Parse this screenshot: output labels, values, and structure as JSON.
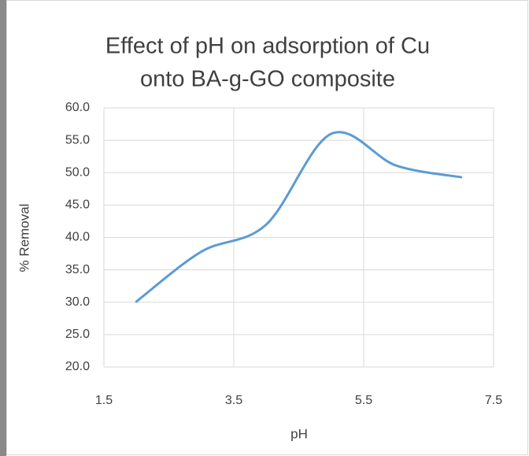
{
  "chart_data": {
    "type": "line",
    "title": [
      "Effect of pH on adsorption of Cu",
      "onto BA-g-GO composite"
    ],
    "x_label": "pH",
    "y_label": "% Removal",
    "x": [
      2,
      3,
      4,
      5,
      6,
      7
    ],
    "series": [
      {
        "name": "% Removal",
        "color": "#5b9bd5",
        "values": [
          30.1,
          37.8,
          42.0,
          56.0,
          51.1,
          49.3
        ]
      }
    ],
    "smooth": true,
    "xlim": [
      1.5,
      7.5
    ],
    "xticks": [
      1.5,
      3.5,
      5.5,
      7.5
    ],
    "ylim": [
      20,
      60
    ],
    "yticks": [
      {
        "value": 20,
        "label": "20.0"
      },
      {
        "value": 25,
        "label": "25.0"
      },
      {
        "value": 30,
        "label": "30.0"
      },
      {
        "value": 35,
        "label": "35.0"
      },
      {
        "value": 40,
        "label": "40.0"
      },
      {
        "value": 45,
        "label": "45.0"
      },
      {
        "value": 50,
        "label": "50.0"
      },
      {
        "value": 55,
        "label": "55.0"
      },
      {
        "value": 60,
        "label": "60.0"
      }
    ],
    "grid": true
  }
}
